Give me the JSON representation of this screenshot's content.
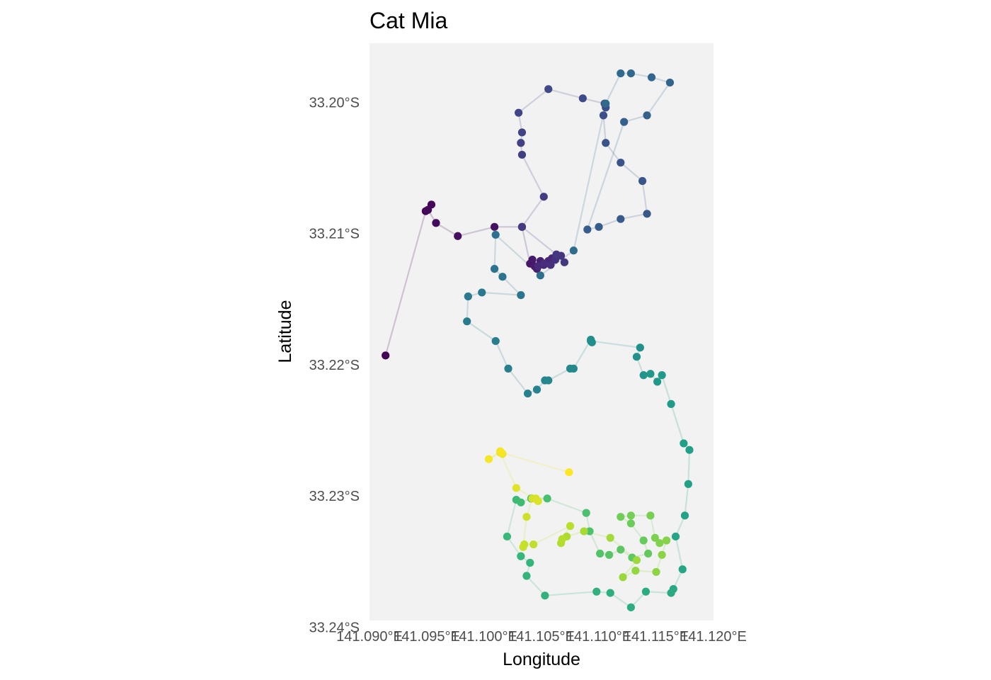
{
  "chart_data": {
    "type": "scatter",
    "title": "Cat Mia",
    "xlabel": "Longitude",
    "ylabel": "Latitude",
    "xlim": [
      141.09,
      141.12
    ],
    "ylim": [
      -33.2395,
      -33.1955
    ],
    "x_ticks": [
      141.09,
      141.095,
      141.1,
      141.105,
      141.11,
      141.115,
      141.12
    ],
    "x_tick_labels": [
      "141.090°E",
      "141.095°E",
      "141.100°E",
      "141.105°E",
      "141.110°E",
      "141.115°E",
      "141.120°E"
    ],
    "y_ticks": [
      -33.2,
      -33.21,
      -33.22,
      -33.23,
      -33.24
    ],
    "y_tick_labels": [
      "33.20°S",
      "33.21°S",
      "33.22°S",
      "33.23°S",
      "33.24°S"
    ],
    "grid": false,
    "legend": "none",
    "panel_background": "#f2f2f2",
    "color_scale": "viridis (by time order)",
    "colors": [
      "#440154",
      "#482878",
      "#3e4a89",
      "#31688e",
      "#26828e",
      "#1f9e89",
      "#35b779",
      "#6ece58",
      "#b5de2b",
      "#fde725"
    ],
    "line_opacity": 0.2,
    "points": [
      [
        141.0914,
        -33.2193
      ],
      [
        141.0949,
        -33.2083
      ],
      [
        141.0954,
        -33.2078
      ],
      [
        141.0951,
        -33.2082
      ],
      [
        141.0958,
        -33.2092
      ],
      [
        141.0977,
        -33.2102
      ],
      [
        141.1009,
        -33.2095
      ],
      [
        141.1033,
        -33.2095
      ],
      [
        141.104,
        -33.2123
      ],
      [
        141.1042,
        -33.212
      ],
      [
        141.1044,
        -33.2125
      ],
      [
        141.1046,
        -33.2127
      ],
      [
        141.1049,
        -33.2121
      ],
      [
        141.1052,
        -33.2124
      ],
      [
        141.1056,
        -33.2121
      ],
      [
        141.1059,
        -33.2119
      ],
      [
        141.1047,
        -33.2125
      ],
      [
        141.1052,
        -33.2123
      ],
      [
        141.1058,
        -33.2124
      ],
      [
        141.1062,
        -33.212
      ],
      [
        141.1067,
        -33.2117
      ],
      [
        141.107,
        -33.2122
      ],
      [
        141.1063,
        -33.2116
      ],
      [
        141.1033,
        -33.2095
      ],
      [
        141.1052,
        -33.2072
      ],
      [
        141.1033,
        -33.204
      ],
      [
        141.1032,
        -33.2031
      ],
      [
        141.1033,
        -33.2023
      ],
      [
        141.103,
        -33.2008
      ],
      [
        141.1056,
        -33.199
      ],
      [
        141.1086,
        -33.1997
      ],
      [
        141.1105,
        -33.2001
      ],
      [
        141.1106,
        -33.2004
      ],
      [
        141.1104,
        -33.201
      ],
      [
        141.1106,
        -33.2031
      ],
      [
        141.1119,
        -33.2046
      ],
      [
        141.1138,
        -33.206
      ],
      [
        141.1142,
        -33.2085
      ],
      [
        141.1119,
        -33.2089
      ],
      [
        141.11,
        -33.2095
      ],
      [
        141.109,
        -33.2097
      ],
      [
        141.1122,
        -33.2015
      ],
      [
        141.1142,
        -33.201
      ],
      [
        141.1162,
        -33.1985
      ],
      [
        141.1146,
        -33.1981
      ],
      [
        141.1128,
        -33.1978
      ],
      [
        141.1119,
        -33.1978
      ],
      [
        141.1106,
        -33.2001
      ],
      [
        141.1078,
        -33.2113
      ],
      [
        141.1049,
        -33.2132
      ],
      [
        141.101,
        -33.2101
      ],
      [
        141.1009,
        -33.2127
      ],
      [
        141.1016,
        -33.2133
      ],
      [
        141.1032,
        -33.2147
      ],
      [
        141.0998,
        -33.2145
      ],
      [
        141.0986,
        -33.2148
      ],
      [
        141.0985,
        -33.2167
      ],
      [
        141.101,
        -33.2182
      ],
      [
        141.1021,
        -33.2203
      ],
      [
        141.1038,
        -33.2222
      ],
      [
        141.1046,
        -33.2219
      ],
      [
        141.1053,
        -33.2212
      ],
      [
        141.1056,
        -33.2212
      ],
      [
        141.1075,
        -33.2203
      ],
      [
        141.1078,
        -33.2203
      ],
      [
        141.1093,
        -33.2181
      ],
      [
        141.1094,
        -33.2183
      ],
      [
        141.1093,
        -33.2182
      ],
      [
        141.1136,
        -33.2187
      ],
      [
        141.1133,
        -33.2194
      ],
      [
        141.1139,
        -33.2208
      ],
      [
        141.1145,
        -33.2207
      ],
      [
        141.1151,
        -33.2213
      ],
      [
        141.1155,
        -33.2208
      ],
      [
        141.1163,
        -33.223
      ],
      [
        141.1174,
        -33.226
      ],
      [
        141.1179,
        -33.2265
      ],
      [
        141.1178,
        -33.2291
      ],
      [
        141.1175,
        -33.2315
      ],
      [
        141.1167,
        -33.2331
      ],
      [
        141.1173,
        -33.2356
      ],
      [
        141.1165,
        -33.2371
      ],
      [
        141.1163,
        -33.2374
      ],
      [
        141.1141,
        -33.2373
      ],
      [
        141.1128,
        -33.2385
      ],
      [
        141.111,
        -33.2374
      ],
      [
        141.1098,
        -33.2373
      ],
      [
        141.1053,
        -33.2376
      ],
      [
        141.1037,
        -33.2361
      ],
      [
        141.104,
        -33.2351
      ],
      [
        141.1032,
        -33.2346
      ],
      [
        141.102,
        -33.2331
      ],
      [
        141.1028,
        -33.2303
      ],
      [
        141.1032,
        -33.2305
      ],
      [
        141.1041,
        -33.2302
      ],
      [
        141.1055,
        -33.2302
      ],
      [
        141.1089,
        -33.2313
      ],
      [
        141.1092,
        -33.2327
      ],
      [
        141.1101,
        -33.2344
      ],
      [
        141.1109,
        -33.2345
      ],
      [
        141.1119,
        -33.2341
      ],
      [
        141.1129,
        -33.2347
      ],
      [
        141.1143,
        -33.2344
      ],
      [
        141.1139,
        -33.2334
      ],
      [
        141.1128,
        -33.2321
      ],
      [
        141.1119,
        -33.2316
      ],
      [
        141.1128,
        -33.2315
      ],
      [
        141.1145,
        -33.2315
      ],
      [
        141.1149,
        -33.2332
      ],
      [
        141.1153,
        -33.2336
      ],
      [
        141.1159,
        -33.2334
      ],
      [
        141.1155,
        -33.2345
      ],
      [
        141.115,
        -33.2358
      ],
      [
        141.1132,
        -33.2357
      ],
      [
        141.1121,
        -33.2362
      ],
      [
        141.1133,
        -33.2349
      ],
      [
        141.111,
        -33.2332
      ],
      [
        141.1087,
        -33.2327
      ],
      [
        141.1072,
        -33.2331
      ],
      [
        141.1067,
        -33.2336
      ],
      [
        141.1068,
        -33.2333
      ],
      [
        141.1075,
        -33.2323
      ],
      [
        141.1043,
        -33.2337
      ],
      [
        141.1035,
        -33.2337
      ],
      [
        141.1034,
        -33.2339
      ],
      [
        141.1037,
        -33.2316
      ],
      [
        141.1042,
        -33.2302
      ],
      [
        141.1045,
        -33.2302
      ],
      [
        141.1047,
        -33.2304
      ],
      [
        141.1028,
        -33.2294
      ],
      [
        141.1014,
        -33.2267
      ],
      [
        141.1016,
        -33.2268
      ],
      [
        141.1014,
        -33.2266
      ],
      [
        141.1004,
        -33.2272
      ],
      [
        141.1015,
        -33.2267
      ],
      [
        141.1074,
        -33.2282
      ]
    ]
  }
}
